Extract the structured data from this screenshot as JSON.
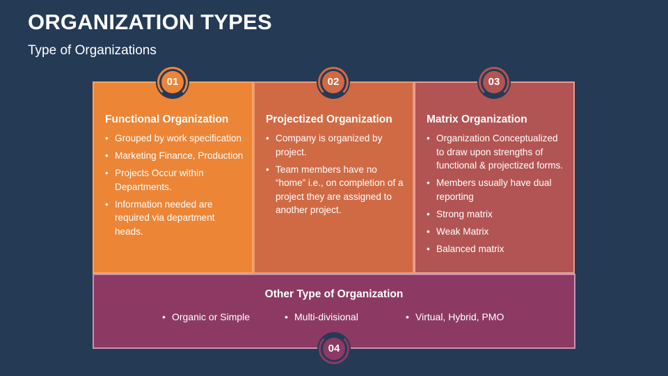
{
  "header": {
    "title": "ORGANIZATION TYPES",
    "subtitle": "Type of Organizations"
  },
  "cards": [
    {
      "number": "01",
      "heading": "Functional Organization",
      "bullets": [
        "Grouped by work specification",
        "Marketing Finance, Production",
        "Projects Occur within Departments.",
        "Information needed are required via department heads."
      ],
      "color": "#ed8536"
    },
    {
      "number": "02",
      "heading": "Projectized Organization",
      "bullets": [
        "Company is organized by project.",
        "Team members have no “home” i.e., on completion of a project they are assigned to another project."
      ],
      "color": "#d06a45"
    },
    {
      "number": "03",
      "heading": "Matrix Organization",
      "bullets": [
        "Organization Conceptualized to draw upon strengths of functional & projectized forms.",
        "Members usually have dual reporting",
        "Strong matrix",
        "Weak Matrix",
        "Balanced matrix"
      ],
      "color": "#b25453"
    }
  ],
  "bottom": {
    "number": "04",
    "heading": "Other Type of Organization",
    "items": [
      "Organic or Simple",
      "Multi-divisional",
      "Virtual, Hybrid, PMO"
    ],
    "color": "#8c3a63"
  },
  "background_color": "#253a55"
}
